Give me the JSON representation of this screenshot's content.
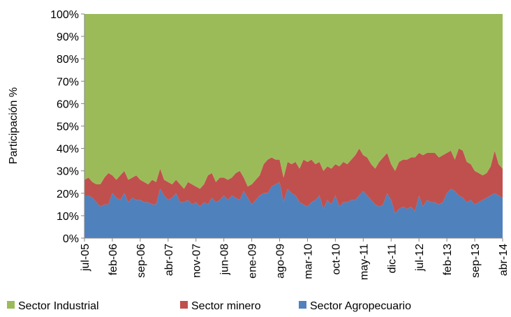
{
  "chart_data": {
    "type": "stacked_area_percent",
    "ylabel": "Participación %",
    "categories": [
      "jul-05",
      null,
      null,
      null,
      null,
      null,
      null,
      "feb-06",
      null,
      null,
      null,
      null,
      null,
      null,
      "sep-06",
      null,
      null,
      null,
      null,
      null,
      null,
      "abr-07",
      null,
      null,
      null,
      null,
      null,
      null,
      "nov-07",
      null,
      null,
      null,
      null,
      null,
      null,
      "jun-08",
      null,
      null,
      null,
      null,
      null,
      null,
      "ene-09",
      null,
      null,
      null,
      null,
      null,
      null,
      "ago-09",
      null,
      null,
      null,
      null,
      null,
      null,
      "mar-10",
      null,
      null,
      null,
      null,
      null,
      null,
      "oct-10",
      null,
      null,
      null,
      null,
      null,
      null,
      "may-11",
      null,
      null,
      null,
      null,
      null,
      null,
      "dic-11",
      null,
      null,
      null,
      null,
      null,
      null,
      "jul-12",
      null,
      null,
      null,
      null,
      null,
      null,
      "feb-13",
      null,
      null,
      null,
      null,
      null,
      null,
      "sep-13",
      null,
      null,
      null,
      null,
      null,
      null,
      "abr-14"
    ],
    "series": [
      {
        "name": "Sector Industrial",
        "color": "#9bbb59",
        "values": [
          74,
          73,
          75,
          76,
          76,
          73,
          71,
          72,
          74,
          72,
          70,
          74,
          73,
          72,
          74,
          75,
          76,
          74,
          75,
          69,
          74,
          75,
          76,
          74,
          76,
          78,
          75,
          76,
          77,
          78,
          76,
          72,
          71,
          75,
          73,
          73,
          74,
          73,
          71,
          70,
          73,
          77,
          76,
          74,
          72,
          67,
          65,
          64,
          65,
          65,
          73,
          66,
          67,
          66,
          69,
          65,
          66,
          65,
          67,
          66,
          70,
          68,
          69,
          67,
          68,
          66,
          67,
          65,
          63,
          60,
          63,
          64,
          67,
          69,
          66,
          64,
          62,
          67,
          70,
          66,
          65,
          65,
          64,
          64,
          62,
          63,
          62,
          62,
          62,
          64,
          63,
          62,
          61,
          65,
          60,
          61,
          66,
          67,
          70,
          71,
          72,
          71,
          68,
          61,
          67,
          69
        ]
      },
      {
        "name": "Sector minero",
        "color": "#c0504d",
        "values": [
          7,
          8,
          7,
          8,
          10,
          12,
          14,
          8,
          8,
          11,
          10,
          10,
          9,
          11,
          9,
          9,
          8,
          11,
          10,
          9,
          7,
          8,
          6,
          6,
          8,
          6,
          8,
          9,
          7,
          8,
          8,
          13,
          11,
          9,
          10,
          8,
          9,
          8,
          11,
          13,
          6,
          5,
          9,
          9,
          9,
          13,
          15,
          13,
          11,
          10,
          11,
          12,
          13,
          15,
          15,
          20,
          20,
          19,
          16,
          15,
          17,
          15,
          16,
          14,
          18,
          18,
          17,
          18,
          20,
          21,
          16,
          17,
          16,
          16,
          20,
          21,
          18,
          16,
          19,
          21,
          21,
          22,
          22,
          24,
          19,
          23,
          21,
          22,
          22,
          21,
          21,
          18,
          17,
          14,
          21,
          21,
          18,
          16,
          15,
          13,
          11,
          11,
          13,
          19,
          14,
          13
        ]
      },
      {
        "name": "Sector Agropecuario",
        "color": "#4f81bd",
        "values": [
          19,
          19,
          18,
          16,
          14,
          15,
          15,
          20,
          18,
          17,
          20,
          16,
          18,
          17,
          17,
          16,
          16,
          15,
          15,
          22,
          19,
          17,
          18,
          20,
          16,
          16,
          17,
          15,
          16,
          14,
          16,
          15,
          18,
          16,
          17,
          19,
          17,
          19,
          18,
          17,
          21,
          18,
          15,
          17,
          19,
          20,
          20,
          23,
          24,
          25,
          16,
          22,
          20,
          19,
          16,
          15,
          14,
          16,
          17,
          19,
          13,
          17,
          15,
          19,
          14,
          16,
          16,
          17,
          17,
          19,
          21,
          19,
          17,
          15,
          14,
          15,
          20,
          17,
          11,
          13,
          14,
          13,
          14,
          12,
          19,
          14,
          17,
          16,
          16,
          15,
          16,
          20,
          22,
          21,
          19,
          18,
          16,
          17,
          15,
          16,
          17,
          18,
          19,
          20,
          19,
          18
        ]
      }
    ],
    "ylim": [
      0,
      100
    ],
    "yticks": [
      {
        "value": 0,
        "label": "0%"
      },
      {
        "value": 10,
        "label": "10%"
      },
      {
        "value": 20,
        "label": "20%"
      },
      {
        "value": 30,
        "label": "30%"
      },
      {
        "value": 40,
        "label": "40%"
      },
      {
        "value": 50,
        "label": "50%"
      },
      {
        "value": 60,
        "label": "60%"
      },
      {
        "value": 70,
        "label": "70%"
      },
      {
        "value": 80,
        "label": "80%"
      },
      {
        "value": 90,
        "label": "90%"
      },
      {
        "value": 100,
        "label": "100%"
      }
    ],
    "legend": "bottom"
  }
}
